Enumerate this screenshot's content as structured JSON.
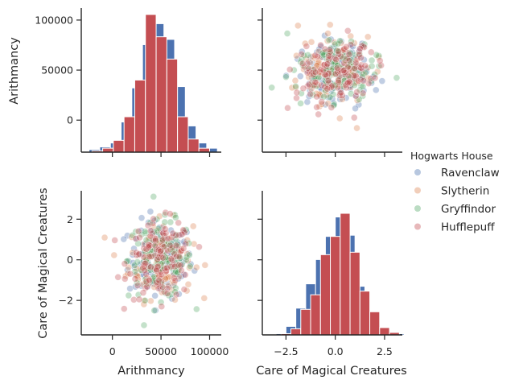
{
  "chart_data": {
    "type": "scatter",
    "kind": "pairplot",
    "hue_title": "Hogwarts House",
    "variables": [
      "Arithmancy",
      "Care of Magical Creatures"
    ],
    "legend_position": "right",
    "houses": [
      {
        "name": "Ravenclaw",
        "color": "#4c72b0"
      },
      {
        "name": "Slytherin",
        "color": "#dd8452"
      },
      {
        "name": "Gryffindor",
        "color": "#55a868"
      },
      {
        "name": "Hufflepuff",
        "color": "#c44e52"
      }
    ],
    "axes": {
      "Arithmancy": {
        "range": [
          -32000,
          112000
        ],
        "ticks": [
          0,
          50000,
          100000
        ],
        "tick_labels": [
          "0",
          "50000",
          "100000"
        ]
      },
      "Care of Magical Creatures": {
        "range": [
          -3.7,
          3.4
        ],
        "ticks_y": [
          -2,
          0,
          2
        ],
        "tick_labels_y": [
          "−2",
          "0",
          "2"
        ],
        "ticks_x": [
          -2.5,
          0,
          2.5
        ],
        "tick_labels_x": [
          "−2.5",
          "0.0",
          "2.5"
        ]
      }
    },
    "hist_arithmancy": {
      "bin_width": 11000,
      "series": [
        {
          "name": "Ravenclaw",
          "bins": [
            [
              -24000,
              2
            ],
            [
              -13000,
              4
            ],
            [
              -2000,
              7
            ],
            [
              9000,
              23
            ],
            [
              20000,
              49
            ],
            [
              31000,
              82
            ],
            [
              42000,
              98
            ],
            [
              53000,
              86
            ],
            [
              64000,
              50
            ],
            [
              75000,
              20
            ],
            [
              86000,
              7
            ],
            [
              97000,
              3
            ]
          ]
        },
        {
          "name": "Hufflepuff",
          "bins": [
            [
              -21000,
              1
            ],
            [
              -10000,
              3
            ],
            [
              1000,
              9
            ],
            [
              12000,
              27
            ],
            [
              23000,
              55
            ],
            [
              34000,
              105
            ],
            [
              45000,
              88
            ],
            [
              56000,
              71
            ],
            [
              67000,
              27
            ],
            [
              78000,
              10
            ],
            [
              89000,
              3
            ]
          ]
        }
      ]
    },
    "hist_care": {
      "bin_width": 0.5,
      "series": [
        {
          "name": "Ravenclaw",
          "bins": [
            [
              -3.0,
              1
            ],
            [
              -2.5,
              7
            ],
            [
              -2.0,
              22
            ],
            [
              -1.5,
              42
            ],
            [
              -1.0,
              62
            ],
            [
              -0.5,
              81
            ],
            [
              0.0,
              97
            ],
            [
              0.5,
              82
            ],
            [
              1.0,
              40
            ],
            [
              1.5,
              16
            ],
            [
              2.0,
              5
            ],
            [
              2.5,
              2
            ],
            [
              3.0,
              1
            ]
          ]
        },
        {
          "name": "Hufflepuff",
          "bins": [
            [
              -2.75,
              1
            ],
            [
              -2.25,
              5
            ],
            [
              -1.75,
              21
            ],
            [
              -1.25,
              33
            ],
            [
              -0.75,
              66
            ],
            [
              -0.25,
              81
            ],
            [
              0.25,
              100
            ],
            [
              0.75,
              68
            ],
            [
              1.25,
              36
            ],
            [
              1.75,
              19
            ],
            [
              2.25,
              6
            ],
            [
              2.75,
              2
            ]
          ]
        }
      ]
    },
    "scatter": {
      "n_per_house": 130,
      "arithmancy_mean": 49500,
      "arithmancy_sd": 16500,
      "care_mean": 0,
      "care_sd": 0.95
    }
  }
}
